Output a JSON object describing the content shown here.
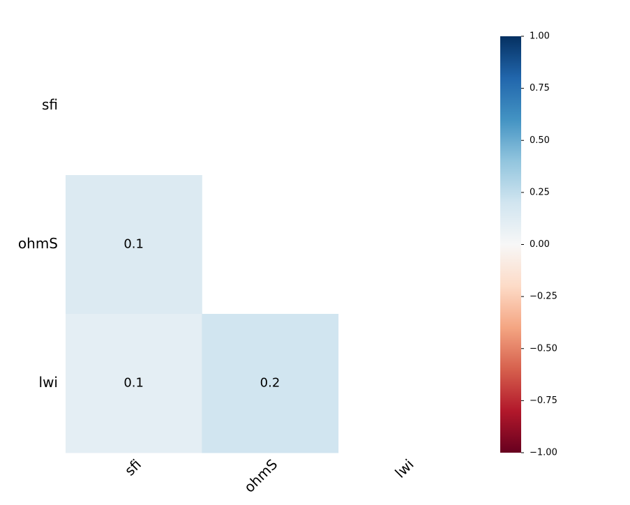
{
  "chart_data": {
    "type": "heatmap",
    "rows": [
      "sfi",
      "ohmS",
      "lwi"
    ],
    "columns": [
      "sfi",
      "ohmS",
      "lwi"
    ],
    "values": [
      [
        null,
        null,
        null
      ],
      [
        0.14,
        null,
        null
      ],
      [
        0.1,
        0.2,
        null
      ]
    ],
    "value_labels": [
      [
        null,
        null,
        null
      ],
      [
        "0.1",
        null,
        null
      ],
      [
        "0.1",
        "0.2",
        null
      ]
    ],
    "colormap": [
      "#67001f",
      "#b2182b",
      "#d6604d",
      "#f4a582",
      "#fddbc7",
      "#f7f7f7",
      "#d1e5f0",
      "#92c5de",
      "#4393c3",
      "#2166ac",
      "#053061"
    ],
    "clim": [
      -1,
      1
    ],
    "cticks": [
      {
        "value": 1,
        "label": "1.00"
      },
      {
        "value": 0.75,
        "label": "0.75"
      },
      {
        "value": 0.5,
        "label": "0.50"
      },
      {
        "value": 0.25,
        "label": "0.25"
      },
      {
        "value": 0,
        "label": "0.00"
      },
      {
        "value": -0.25,
        "label": "−0.25"
      },
      {
        "value": -0.5,
        "label": "−0.50"
      },
      {
        "value": -0.75,
        "label": "−0.75"
      },
      {
        "value": -1,
        "label": "−1.00"
      }
    ]
  }
}
